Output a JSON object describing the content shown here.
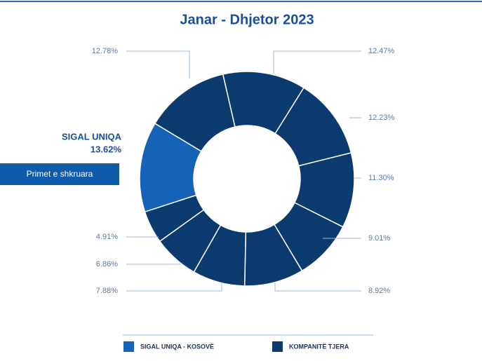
{
  "chart_data": {
    "type": "donut",
    "title": "Janar - Dhjetor 2023",
    "categories": [
      "SIGAL UNIQA",
      null,
      null,
      null,
      null,
      null,
      null,
      null,
      null,
      null
    ],
    "values": [
      13.62,
      12.78,
      12.47,
      12.23,
      11.3,
      9.01,
      8.92,
      7.88,
      6.86,
      4.91
    ],
    "value_labels": [
      "13.62%",
      "12.78%",
      "12.47%",
      "12.23%",
      "11.30%",
      "9.01%",
      "8.92%",
      "7.88%",
      "6.86%",
      "4.91%"
    ],
    "colors": [
      "#1463b8",
      "#0b3a6e",
      "#0b3a6e",
      "#0b3a6e",
      "#0b3a6e",
      "#0b3a6e",
      "#0b3a6e",
      "#0b3a6e",
      "#0b3a6e",
      "#0b3a6e"
    ],
    "annotation": "Primet e shkruara",
    "legend": [
      {
        "name": "SIGAL UNIQA - KOSOVË",
        "color": "#1463b8"
      },
      {
        "name": "KOMPANITË TJERA",
        "color": "#0b3a6e"
      }
    ]
  }
}
